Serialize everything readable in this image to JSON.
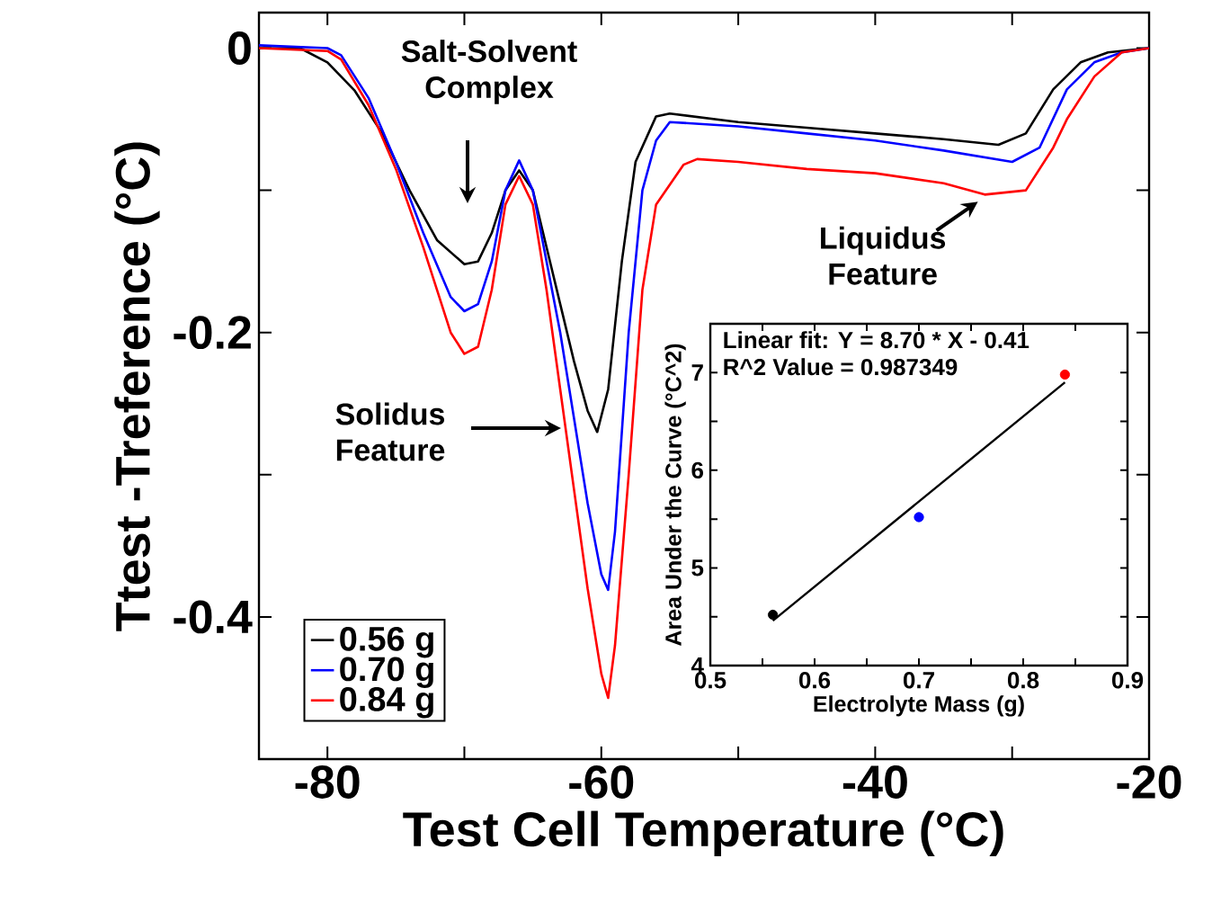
{
  "chart_data": [
    {
      "type": "line",
      "xlabel": "Test Cell Temperature (°C)",
      "ylabel": "Ttest -Treference (°C)",
      "xlim": [
        -85,
        -20
      ],
      "ylim": [
        -0.5,
        0.025
      ],
      "xticks": [
        -80,
        {
          "value": -70,
          "label": null
        },
        -60,
        {
          "value": -50,
          "label": null
        },
        -40,
        {
          "value": -30,
          "label": null
        },
        -20
      ],
      "yticks": [
        {
          "value": -0.4,
          "label": "-0.4"
        },
        {
          "value": -0.3,
          "label": null
        },
        {
          "value": -0.2,
          "label": "-0.2"
        },
        {
          "value": -0.1,
          "label": null
        },
        0
      ],
      "legend": "bottom left",
      "series": [
        {
          "name": "0.56 g",
          "color": "#000000",
          "x": [
            -85,
            -82,
            -80,
            -78,
            -76,
            -74,
            -72,
            -70,
            -69,
            -68,
            -67,
            -66,
            -65,
            -64,
            -63,
            -62,
            -61,
            -60.3,
            -59.5,
            -58.5,
            -57.5,
            -56,
            -55,
            -50,
            -45,
            -40,
            -35,
            -31,
            -29,
            -27,
            -25,
            -23,
            -20
          ],
          "values": [
            0,
            0,
            -0.01,
            -0.03,
            -0.06,
            -0.1,
            -0.135,
            -0.152,
            -0.15,
            -0.13,
            -0.1,
            -0.086,
            -0.1,
            -0.14,
            -0.18,
            -0.22,
            -0.255,
            -0.27,
            -0.24,
            -0.15,
            -0.08,
            -0.048,
            -0.046,
            -0.052,
            -0.056,
            -0.06,
            -0.064,
            -0.068,
            -0.06,
            -0.029,
            -0.01,
            -0.003,
            0
          ]
        },
        {
          "name": "0.70 g",
          "color": "#0000ff",
          "x": [
            -85,
            -80,
            -79,
            -77,
            -75,
            -73,
            -71,
            -70,
            -69,
            -68,
            -67,
            -66,
            -65,
            -64,
            -63,
            -62,
            -61,
            -60,
            -59.5,
            -59,
            -58,
            -57,
            -56,
            -55,
            -50,
            -45,
            -40,
            -35,
            -30,
            -28,
            -26,
            -24,
            -22,
            -20
          ],
          "values": [
            0.002,
            0,
            -0.005,
            -0.035,
            -0.08,
            -0.13,
            -0.175,
            -0.185,
            -0.18,
            -0.15,
            -0.1,
            -0.079,
            -0.1,
            -0.15,
            -0.2,
            -0.26,
            -0.32,
            -0.37,
            -0.381,
            -0.34,
            -0.2,
            -0.1,
            -0.065,
            -0.052,
            -0.055,
            -0.06,
            -0.065,
            -0.072,
            -0.08,
            -0.07,
            -0.029,
            -0.01,
            -0.003,
            0
          ]
        },
        {
          "name": "0.84 g",
          "color": "#ff0000",
          "x": [
            -85,
            -80,
            -79,
            -77,
            -75,
            -73,
            -71,
            -70,
            -69,
            -68,
            -67,
            -66,
            -65,
            -64,
            -63,
            -62,
            -61,
            -60,
            -59.5,
            -59,
            -58,
            -57,
            -56,
            -54,
            -53,
            -50,
            -45,
            -40,
            -35,
            -32,
            -29,
            -27,
            -26,
            -24,
            -22,
            -20
          ],
          "values": [
            0,
            -0.002,
            -0.008,
            -0.04,
            -0.085,
            -0.14,
            -0.2,
            -0.215,
            -0.21,
            -0.17,
            -0.11,
            -0.09,
            -0.11,
            -0.17,
            -0.24,
            -0.31,
            -0.38,
            -0.44,
            -0.457,
            -0.42,
            -0.3,
            -0.17,
            -0.11,
            -0.082,
            -0.078,
            -0.08,
            -0.085,
            -0.088,
            -0.095,
            -0.103,
            -0.1,
            -0.07,
            -0.05,
            -0.02,
            -0.003,
            0
          ]
        }
      ],
      "annotations": [
        "Salt-Solvent Complex",
        "Solidus Feature",
        {
          "text": "Liquidus Feature",
          "x": -32.5,
          "y": -0.108
        }
      ]
    },
    {
      "type": "scatter",
      "xlabel": "Electrolyte Mass (g)",
      "ylabel": "Area Under the Curve (°C^2)",
      "xlim": [
        0.5,
        0.9
      ],
      "ylim": [
        4,
        7.5
      ],
      "xticks": [
        0.5,
        {
          "value": 0.55,
          "label": null
        },
        0.6,
        {
          "value": 0.65,
          "label": null
        },
        0.7,
        {
          "value": 0.75,
          "label": null
        },
        0.8,
        {
          "value": 0.85,
          "label": null
        },
        0.9
      ],
      "yticks": [
        4,
        {
          "value": 4.5,
          "label": null
        },
        5,
        {
          "value": 5.5,
          "label": null
        },
        6,
        {
          "value": 6.5,
          "label": null
        },
        7
      ],
      "series": [
        {
          "marker": "circle",
          "x": [
            0.56,
            0.7,
            0.84
          ],
          "values": [
            4.52,
            5.52,
            6.98
          ],
          "colors": [
            "#000000",
            "#0000ff",
            "#ff0000"
          ]
        },
        {
          "type": "line",
          "marker": "none",
          "color": "#000000",
          "x": [
            0.56,
            0.84
          ],
          "values": [
            4.46,
            6.9
          ]
        }
      ],
      "annotations": [
        "Linear fit: Y = 8.70 * X - 0.41",
        "R^2 Value = 0.987349"
      ]
    }
  ]
}
